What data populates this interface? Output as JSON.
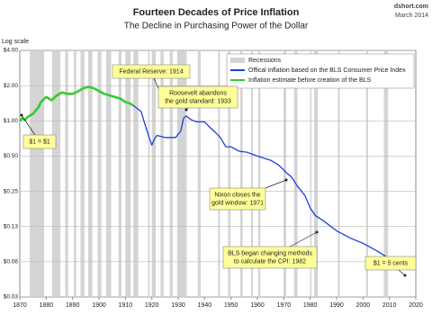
{
  "chart_data": {
    "type": "line",
    "title": "Fourteen Decades of Price Inflation",
    "subtitle": "The Decline in Purchasing Power of the Dollar",
    "source": "dshort.com",
    "date": "March 2014",
    "y_axis_label": "Log scale",
    "log_scale": true,
    "grid": true,
    "legend_position": "upper right",
    "xlim": [
      1870,
      2020
    ],
    "xticks": [
      1870,
      1880,
      1890,
      1900,
      1910,
      1920,
      1930,
      1940,
      1950,
      1960,
      1970,
      1980,
      1990,
      2000,
      2010,
      2020
    ],
    "ylim": [
      0.03125,
      4
    ],
    "yticks": [
      {
        "value": 4,
        "label": "$4.00"
      },
      {
        "value": 2,
        "label": "$2.00"
      },
      {
        "value": 1,
        "label": "$1.00"
      },
      {
        "value": 0.5,
        "label": "$0.50"
      },
      {
        "value": 0.25,
        "label": "$0.25"
      },
      {
        "value": 0.125,
        "label": "$0.13"
      },
      {
        "value": 0.0625,
        "label": "$0.06"
      },
      {
        "value": 0.03125,
        "label": "$0.03"
      }
    ],
    "recessions": {
      "name": "Recessions",
      "color": "#d4d4d4",
      "periods": [
        [
          1873.8,
          1879.2
        ],
        [
          1882.2,
          1885.4
        ],
        [
          1887.2,
          1888.3
        ],
        [
          1890.5,
          1891.4
        ],
        [
          1893.0,
          1894.5
        ],
        [
          1895.9,
          1897.5
        ],
        [
          1899.5,
          1900.9
        ],
        [
          1902.7,
          1904.6
        ],
        [
          1907.4,
          1908.5
        ],
        [
          1910.0,
          1912.0
        ],
        [
          1913.0,
          1914.9
        ],
        [
          1918.6,
          1919.2
        ],
        [
          1920.0,
          1921.5
        ],
        [
          1923.3,
          1924.5
        ],
        [
          1926.8,
          1927.9
        ],
        [
          1929.6,
          1933.2
        ],
        [
          1937.4,
          1938.5
        ],
        [
          1945.1,
          1945.8
        ],
        [
          1948.9,
          1949.8
        ],
        [
          1953.5,
          1954.4
        ],
        [
          1957.6,
          1958.3
        ],
        [
          1960.3,
          1961.1
        ],
        [
          1969.9,
          1970.9
        ],
        [
          1973.9,
          1975.2
        ],
        [
          1980.0,
          1980.5
        ],
        [
          1981.5,
          1982.9
        ],
        [
          1990.5,
          1991.2
        ],
        [
          2001.2,
          2001.9
        ],
        [
          2007.9,
          2009.5
        ]
      ]
    },
    "series": [
      {
        "name": "Offical inflation based on the BLS Consumer Price Index",
        "color": "#1f3fd8",
        "x": [
          1913,
          1914,
          1916,
          1917,
          1918,
          1919,
          1920,
          1921,
          1922,
          1925,
          1929,
          1931,
          1932,
          1933,
          1935,
          1937,
          1940,
          1942,
          1944,
          1946,
          1948,
          1950,
          1953,
          1956,
          1960,
          1965,
          1968,
          1970,
          1971,
          1973,
          1975,
          1978,
          1980,
          1982,
          1985,
          1990,
          1995,
          2000,
          2005,
          2008,
          2010,
          2014
        ],
        "values": [
          1.35,
          1.3,
          1.2,
          1.0,
          0.85,
          0.72,
          0.62,
          0.7,
          0.75,
          0.72,
          0.72,
          0.82,
          1.05,
          1.1,
          1.02,
          0.98,
          0.98,
          0.88,
          0.8,
          0.72,
          0.6,
          0.6,
          0.55,
          0.54,
          0.5,
          0.46,
          0.42,
          0.38,
          0.36,
          0.33,
          0.28,
          0.23,
          0.18,
          0.155,
          0.14,
          0.115,
          0.1,
          0.09,
          0.078,
          0.071,
          0.066,
          0.055
        ]
      },
      {
        "name": "Inflation estimate before creation of the BLS",
        "color": "#33cc33",
        "x": [
          1870,
          1871,
          1872,
          1873,
          1875,
          1877,
          1878,
          1880,
          1882,
          1884,
          1886,
          1888,
          1890,
          1892,
          1894,
          1896,
          1898,
          1900,
          1902,
          1904,
          1906,
          1908,
          1910,
          1912,
          1913
        ],
        "values": [
          1.0,
          1.05,
          1.02,
          1.08,
          1.15,
          1.3,
          1.45,
          1.6,
          1.5,
          1.65,
          1.75,
          1.7,
          1.7,
          1.78,
          1.9,
          1.95,
          1.9,
          1.8,
          1.7,
          1.65,
          1.6,
          1.55,
          1.45,
          1.4,
          1.35
        ]
      }
    ],
    "annotations": [
      {
        "lines": [
          "$1 = $1"
        ]
      },
      {
        "lines": [
          "Federal Reserve: 1914"
        ]
      },
      {
        "lines": [
          "Roosevelt abandons",
          "the gold standard: 1933"
        ]
      },
      {
        "lines": [
          "Nixon closes the",
          "gold window: 1971"
        ]
      },
      {
        "lines": [
          "BLS began  changing methods",
          "to calculate the CPI: 1982"
        ]
      },
      {
        "lines": [
          "$1 = 5 cents"
        ]
      }
    ]
  }
}
